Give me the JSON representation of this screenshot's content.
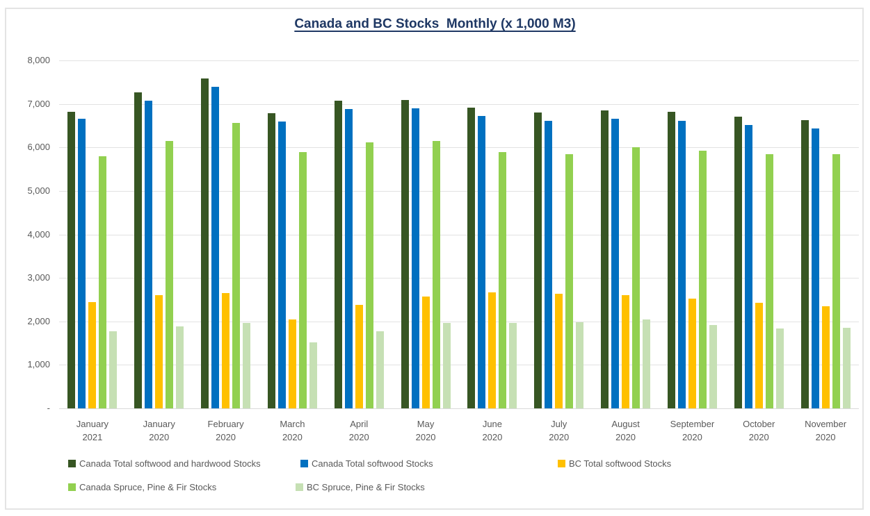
{
  "title": "Canada and BC Stocks  Monthly (x 1,000 M3)",
  "chart_data": {
    "type": "bar",
    "title": "Canada and BC Stocks  Monthly (x 1,000 M3)",
    "categories": [
      {
        "month": "January",
        "year": "2021"
      },
      {
        "month": "January",
        "year": "2020"
      },
      {
        "month": "February",
        "year": "2020"
      },
      {
        "month": "March",
        "year": "2020"
      },
      {
        "month": "April",
        "year": "2020"
      },
      {
        "month": "May",
        "year": "2020"
      },
      {
        "month": "June",
        "year": "2020"
      },
      {
        "month": "July",
        "year": "2020"
      },
      {
        "month": "August",
        "year": "2020"
      },
      {
        "month": "September",
        "year": "2020"
      },
      {
        "month": "October",
        "year": "2020"
      },
      {
        "month": "November",
        "year": "2020"
      }
    ],
    "series": [
      {
        "name": "Canada Total softwood and hardwood Stocks",
        "color": "#375623",
        "values": [
          6820,
          7270,
          7580,
          6780,
          7070,
          7090,
          6910,
          6800,
          6850,
          6820,
          6700,
          6620
        ]
      },
      {
        "name": "Canada Total softwood Stocks",
        "color": "#0070c0",
        "values": [
          6660,
          7070,
          7400,
          6600,
          6880,
          6900,
          6720,
          6610,
          6660,
          6610,
          6510,
          6430
        ]
      },
      {
        "name": "BC Total softwood Stocks",
        "color": "#ffc000",
        "values": [
          2440,
          2600,
          2650,
          2040,
          2380,
          2570,
          2660,
          2640,
          2610,
          2520,
          2420,
          2350
        ]
      },
      {
        "name": "Canada Spruce, Pine & Fir Stocks",
        "color": "#92d050",
        "values": [
          5790,
          6150,
          6560,
          5900,
          6110,
          6150,
          5900,
          5840,
          6000,
          5930,
          5840,
          5840
        ]
      },
      {
        "name": "BC Spruce, Pine & Fir Stocks",
        "color": "#c6e0b4",
        "values": [
          1780,
          1880,
          1970,
          1520,
          1770,
          1960,
          1960,
          1980,
          2050,
          1910,
          1840,
          1850
        ]
      }
    ],
    "ylim": [
      0,
      8000
    ],
    "ytick_interval": 1000,
    "ytick_labels": [
      "8,000",
      "7,000",
      "6,000",
      "5,000",
      "4,000",
      "3,000",
      "2,000",
      "1,000",
      "-"
    ],
    "grid": true,
    "legend_position": "bottom"
  }
}
